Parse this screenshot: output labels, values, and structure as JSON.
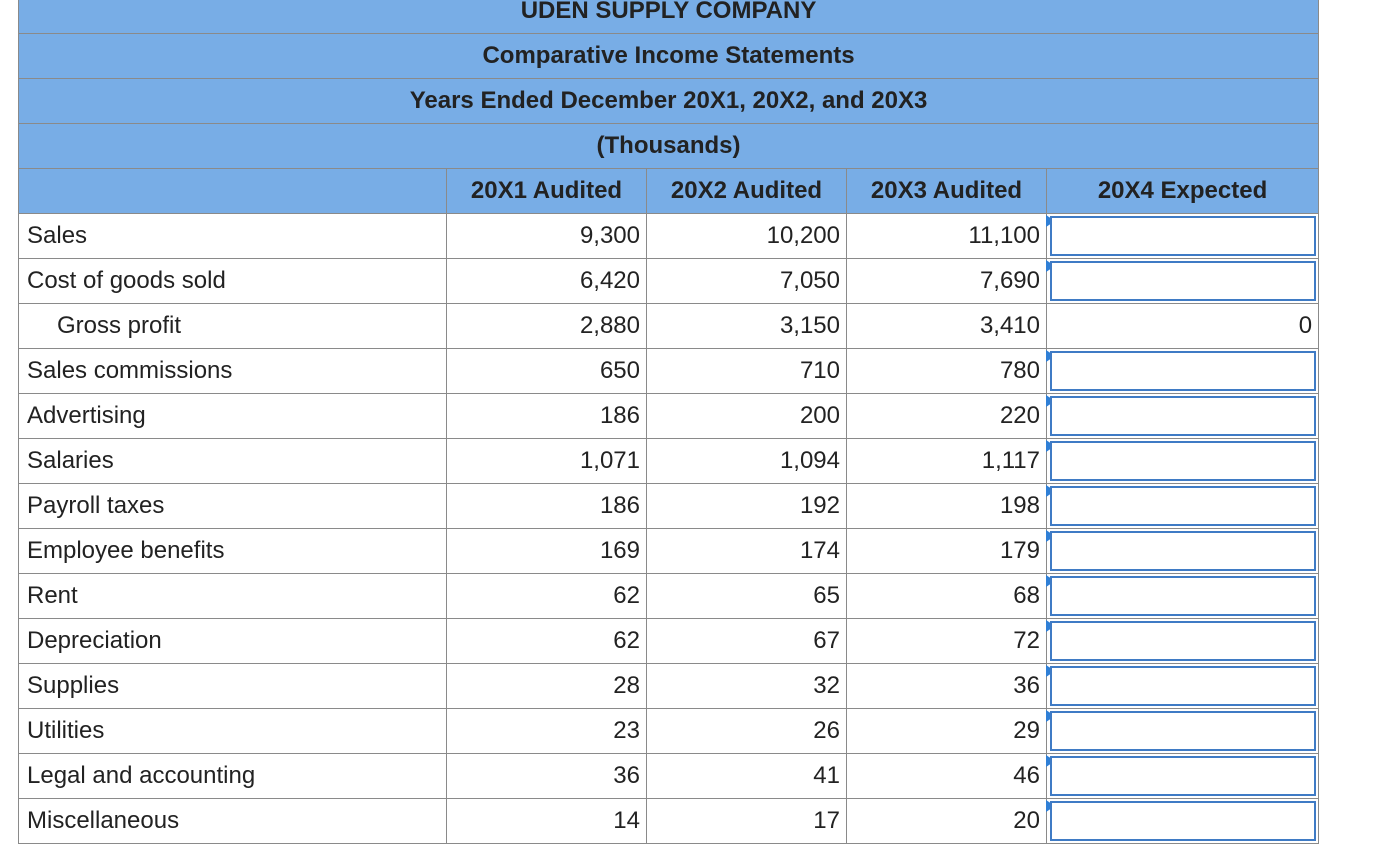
{
  "title": {
    "company": "UDEN SUPPLY COMPANY",
    "statement": "Comparative Income Statements",
    "period": "Years Ended December 20X1, 20X2, and 20X3",
    "units": "(Thousands)"
  },
  "columns": [
    "",
    "20X1 Audited",
    "20X2 Audited",
    "20X3 Audited",
    "20X4 Expected"
  ],
  "rows": [
    {
      "label": "Sales",
      "y1": "9,300",
      "y2": "10,200",
      "y3": "11,100",
      "y4": ""
    },
    {
      "label": "Cost of goods sold",
      "y1": "6,420",
      "y2": "7,050",
      "y3": "7,690",
      "y4": ""
    },
    {
      "label": "Gross profit",
      "y1": "2,880",
      "y2": "3,150",
      "y3": "3,410",
      "y4": "0"
    },
    {
      "label": "Sales commissions",
      "y1": "650",
      "y2": "710",
      "y3": "780",
      "y4": ""
    },
    {
      "label": "Advertising",
      "y1": "186",
      "y2": "200",
      "y3": "220",
      "y4": ""
    },
    {
      "label": "Salaries",
      "y1": "1,071",
      "y2": "1,094",
      "y3": "1,117",
      "y4": ""
    },
    {
      "label": "Payroll taxes",
      "y1": "186",
      "y2": "192",
      "y3": "198",
      "y4": ""
    },
    {
      "label": "Employee benefits",
      "y1": "169",
      "y2": "174",
      "y3": "179",
      "y4": ""
    },
    {
      "label": "Rent",
      "y1": "62",
      "y2": "65",
      "y3": "68",
      "y4": ""
    },
    {
      "label": "Depreciation",
      "y1": "62",
      "y2": "67",
      "y3": "72",
      "y4": ""
    },
    {
      "label": "Supplies",
      "y1": "28",
      "y2": "32",
      "y3": "36",
      "y4": ""
    },
    {
      "label": "Utilities",
      "y1": "23",
      "y2": "26",
      "y3": "29",
      "y4": ""
    },
    {
      "label": "Legal and accounting",
      "y1": "36",
      "y2": "41",
      "y3": "46",
      "y4": ""
    },
    {
      "label": "Miscellaneous",
      "y1": "14",
      "y2": "17",
      "y3": "20",
      "y4": ""
    }
  ],
  "colors": {
    "header_bg": "#78ade6",
    "input_border": "#3f7bc5",
    "flag": "#2f7fd6"
  }
}
